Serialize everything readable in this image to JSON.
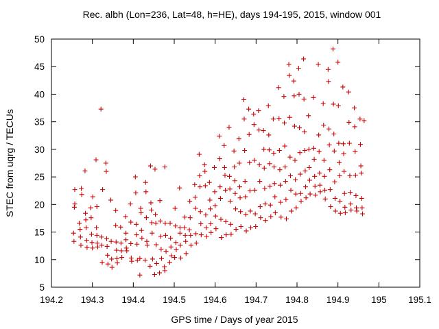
{
  "chart_data": {
    "type": "scatter",
    "title": "Rec. albh (Lon=236, Lat=48, h=HE), days 194-195, 2015, window 001",
    "xlabel": "GPS time / Days of year 2015",
    "ylabel": "STEC from uqrg / TECUs",
    "xlim": [
      194.2,
      195.1
    ],
    "ylim": [
      5,
      50
    ],
    "xticks": [
      "194.2",
      "194.3",
      "194.4",
      "194.5",
      "194.6",
      "194.7",
      "194.8",
      "194.9",
      "195",
      "195.1"
    ],
    "yticks": [
      "5",
      "10",
      "15",
      "20",
      "25",
      "30",
      "35",
      "40",
      "45",
      "50"
    ],
    "grid": false,
    "marker": "+",
    "colors": {
      "points": "#cc0000",
      "axes": "#000000"
    },
    "points": [
      [
        194.254,
        14.8
      ],
      [
        194.255,
        13.3
      ],
      [
        194.256,
        19.5
      ],
      [
        194.257,
        22.7
      ],
      [
        194.257,
        20.1
      ],
      [
        194.268,
        16.6
      ],
      [
        194.27,
        15.5
      ],
      [
        194.271,
        14.1
      ],
      [
        194.272,
        12.6
      ],
      [
        194.273,
        22.9
      ],
      [
        194.274,
        21.8
      ],
      [
        194.283,
        18.4
      ],
      [
        194.284,
        17.2
      ],
      [
        194.285,
        15.8
      ],
      [
        194.286,
        13.5
      ],
      [
        194.287,
        12.2
      ],
      [
        194.282,
        26.1
      ],
      [
        194.297,
        17.6
      ],
      [
        194.298,
        14.6
      ],
      [
        194.299,
        13.1
      ],
      [
        194.3,
        12.1
      ],
      [
        194.301,
        21.4
      ],
      [
        194.296,
        19.4
      ],
      [
        194.31,
        15.8
      ],
      [
        194.311,
        14.4
      ],
      [
        194.312,
        13.0
      ],
      [
        194.313,
        12.3
      ],
      [
        194.309,
        28.1
      ],
      [
        194.311,
        19.6
      ],
      [
        194.322,
        14.1
      ],
      [
        194.323,
        12.6
      ],
      [
        194.324,
        9.5
      ],
      [
        194.325,
        22.7
      ],
      [
        194.321,
        37.3
      ],
      [
        194.335,
        13.8
      ],
      [
        194.336,
        12.4
      ],
      [
        194.337,
        10.8
      ],
      [
        194.338,
        9.2
      ],
      [
        194.333,
        27.5
      ],
      [
        194.334,
        26.0
      ],
      [
        194.346,
        13.3
      ],
      [
        194.347,
        10.1
      ],
      [
        194.348,
        8.6
      ],
      [
        194.345,
        20.8
      ],
      [
        194.358,
        13.2
      ],
      [
        194.359,
        11.7
      ],
      [
        194.36,
        10.2
      ],
      [
        194.361,
        9.4
      ],
      [
        194.357,
        18.9
      ],
      [
        194.357,
        16.2
      ],
      [
        194.37,
        13.0
      ],
      [
        194.371,
        11.6
      ],
      [
        194.372,
        10.4
      ],
      [
        194.369,
        15.9
      ],
      [
        194.382,
        13.6
      ],
      [
        194.383,
        12.1
      ],
      [
        194.384,
        11.6
      ],
      [
        194.381,
        17.8
      ],
      [
        194.382,
        14.8
      ],
      [
        194.394,
        12.9
      ],
      [
        194.395,
        10.3
      ],
      [
        194.396,
        9.7
      ],
      [
        194.393,
        20.1
      ],
      [
        194.394,
        16.8
      ],
      [
        194.405,
        25.0
      ],
      [
        194.406,
        22.1
      ],
      [
        194.407,
        16.4
      ],
      [
        194.408,
        14.5
      ],
      [
        194.409,
        12.8
      ],
      [
        194.41,
        9.9
      ],
      [
        194.418,
        19.3
      ],
      [
        194.419,
        18.5
      ],
      [
        194.42,
        15.3
      ],
      [
        194.421,
        13.9
      ],
      [
        194.416,
        10.2
      ],
      [
        194.416,
        7.2
      ],
      [
        194.43,
        24.0
      ],
      [
        194.431,
        22.3
      ],
      [
        194.432,
        17.6
      ],
      [
        194.433,
        13.3
      ],
      [
        194.434,
        12.6
      ],
      [
        194.429,
        9.9
      ],
      [
        194.442,
        27.0
      ],
      [
        194.443,
        20.3
      ],
      [
        194.444,
        19.0
      ],
      [
        194.445,
        16.7
      ],
      [
        194.446,
        14.8
      ],
      [
        194.447,
        10.1
      ],
      [
        194.441,
        8.8
      ],
      [
        194.453,
        26.4
      ],
      [
        194.454,
        18.2
      ],
      [
        194.455,
        16.6
      ],
      [
        194.456,
        12.7
      ],
      [
        194.457,
        9.3
      ],
      [
        194.452,
        7.3
      ],
      [
        194.465,
        20.7
      ],
      [
        194.466,
        17.0
      ],
      [
        194.467,
        14.2
      ],
      [
        194.468,
        11.9
      ],
      [
        194.469,
        10.2
      ],
      [
        194.464,
        7.6
      ],
      [
        194.477,
        26.8
      ],
      [
        194.478,
        16.6
      ],
      [
        194.479,
        14.4
      ],
      [
        194.48,
        11.5
      ],
      [
        194.476,
        8.7
      ],
      [
        194.477,
        8.0
      ],
      [
        194.49,
        16.6
      ],
      [
        194.491,
        13.9
      ],
      [
        194.492,
        12.3
      ],
      [
        194.493,
        10.7
      ],
      [
        194.489,
        9.5
      ],
      [
        194.502,
        19.3
      ],
      [
        194.503,
        16.1
      ],
      [
        194.504,
        13.1
      ],
      [
        194.505,
        11.8
      ],
      [
        194.501,
        10.4
      ],
      [
        194.514,
        14.8
      ],
      [
        194.515,
        12.6
      ],
      [
        194.516,
        10.3
      ],
      [
        194.513,
        23.0
      ],
      [
        194.514,
        15.8
      ],
      [
        194.526,
        17.7
      ],
      [
        194.527,
        14.4
      ],
      [
        194.528,
        13.3
      ],
      [
        194.529,
        11.1
      ],
      [
        194.525,
        15.8
      ],
      [
        194.538,
        20.6
      ],
      [
        194.539,
        17.6
      ],
      [
        194.54,
        14.4
      ],
      [
        194.541,
        12.6
      ],
      [
        194.537,
        15.4
      ],
      [
        194.55,
        23.6
      ],
      [
        194.551,
        21.3
      ],
      [
        194.552,
        19.3
      ],
      [
        194.553,
        14.7
      ],
      [
        194.554,
        13.0
      ],
      [
        194.562,
        25.2
      ],
      [
        194.563,
        23.2
      ],
      [
        194.564,
        18.7
      ],
      [
        194.565,
        16.5
      ],
      [
        194.566,
        14.5
      ],
      [
        194.561,
        29.1
      ],
      [
        194.574,
        27.2
      ],
      [
        194.575,
        26.0
      ],
      [
        194.576,
        23.4
      ],
      [
        194.577,
        18.1
      ],
      [
        194.578,
        15.8
      ],
      [
        194.579,
        14.2
      ],
      [
        194.586,
        24.0
      ],
      [
        194.587,
        20.8
      ],
      [
        194.588,
        19.2
      ],
      [
        194.589,
        16.5
      ],
      [
        194.59,
        14.9
      ],
      [
        194.598,
        26.7
      ],
      [
        194.599,
        22.3
      ],
      [
        194.6,
        19.8
      ],
      [
        194.601,
        17.9
      ],
      [
        194.602,
        15.6
      ],
      [
        194.61,
        32.4
      ],
      [
        194.611,
        28.3
      ],
      [
        194.612,
        23.2
      ],
      [
        194.613,
        21.1
      ],
      [
        194.614,
        17.3
      ],
      [
        194.615,
        14.0
      ],
      [
        194.622,
        30.7
      ],
      [
        194.623,
        26.7
      ],
      [
        194.624,
        25.3
      ],
      [
        194.625,
        22.6
      ],
      [
        194.626,
        16.9
      ],
      [
        194.627,
        14.5
      ],
      [
        194.634,
        34.0
      ],
      [
        194.635,
        25.1
      ],
      [
        194.636,
        22.8
      ],
      [
        194.637,
        20.6
      ],
      [
        194.638,
        16.4
      ],
      [
        194.639,
        14.6
      ],
      [
        194.646,
        29.7
      ],
      [
        194.647,
        26.8
      ],
      [
        194.648,
        24.3
      ],
      [
        194.649,
        22.0
      ],
      [
        194.65,
        19.2
      ],
      [
        194.651,
        15.5
      ],
      [
        194.658,
        31.9
      ],
      [
        194.659,
        27.5
      ],
      [
        194.66,
        23.2
      ],
      [
        194.661,
        21.2
      ],
      [
        194.662,
        18.7
      ],
      [
        194.663,
        16.0
      ],
      [
        194.67,
        39.0
      ],
      [
        194.671,
        35.5
      ],
      [
        194.672,
        29.8
      ],
      [
        194.673,
        24.2
      ],
      [
        194.674,
        21.4
      ],
      [
        194.675,
        18.2
      ],
      [
        194.676,
        15.2
      ],
      [
        194.682,
        37.3
      ],
      [
        194.683,
        32.7
      ],
      [
        194.684,
        27.6
      ],
      [
        194.685,
        22.5
      ],
      [
        194.686,
        18.8
      ],
      [
        194.687,
        15.8
      ],
      [
        194.694,
        36.4
      ],
      [
        194.695,
        34.5
      ],
      [
        194.696,
        28.0
      ],
      [
        194.697,
        22.6
      ],
      [
        194.698,
        18.3
      ],
      [
        194.699,
        16.0
      ],
      [
        194.706,
        37.0
      ],
      [
        194.707,
        33.5
      ],
      [
        194.708,
        27.2
      ],
      [
        194.709,
        24.2
      ],
      [
        194.71,
        19.6
      ],
      [
        194.711,
        17.6
      ],
      [
        194.718,
        33.4
      ],
      [
        194.719,
        30.0
      ],
      [
        194.72,
        26.6
      ],
      [
        194.721,
        22.9
      ],
      [
        194.722,
        20.1
      ],
      [
        194.723,
        17.1
      ],
      [
        194.73,
        37.9
      ],
      [
        194.731,
        32.6
      ],
      [
        194.732,
        29.9
      ],
      [
        194.733,
        27.4
      ],
      [
        194.734,
        23.3
      ],
      [
        194.735,
        19.9
      ],
      [
        194.736,
        17.8
      ],
      [
        194.742,
        35.5
      ],
      [
        194.743,
        29.3
      ],
      [
        194.744,
        26.8
      ],
      [
        194.745,
        23.8
      ],
      [
        194.746,
        21.4
      ],
      [
        194.747,
        18.5
      ],
      [
        194.755,
        41.2
      ],
      [
        194.756,
        35.6
      ],
      [
        194.757,
        29.8
      ],
      [
        194.758,
        26.3
      ],
      [
        194.759,
        23.5
      ],
      [
        194.76,
        20.4
      ],
      [
        194.761,
        17.7
      ],
      [
        194.768,
        39.6
      ],
      [
        194.769,
        34.8
      ],
      [
        194.77,
        30.6
      ],
      [
        194.771,
        26.8
      ],
      [
        194.772,
        24.2
      ],
      [
        194.773,
        20.9
      ],
      [
        194.774,
        17.4
      ],
      [
        194.78,
        45.4
      ],
      [
        194.781,
        43.4
      ],
      [
        194.782,
        35.8
      ],
      [
        194.783,
        28.6
      ],
      [
        194.784,
        25.2
      ],
      [
        194.785,
        22.6
      ],
      [
        194.786,
        18.8
      ],
      [
        194.792,
        42.4
      ],
      [
        194.793,
        39.7
      ],
      [
        194.794,
        34.2
      ],
      [
        194.795,
        28.0
      ],
      [
        194.796,
        24.5
      ],
      [
        194.797,
        21.9
      ],
      [
        194.798,
        19.4
      ],
      [
        194.804,
        44.7
      ],
      [
        194.805,
        40.0
      ],
      [
        194.806,
        33.9
      ],
      [
        194.807,
        29.4
      ],
      [
        194.808,
        25.5
      ],
      [
        194.809,
        22.0
      ],
      [
        194.81,
        20.6
      ],
      [
        194.816,
        46.4
      ],
      [
        194.817,
        39.1
      ],
      [
        194.818,
        33.2
      ],
      [
        194.819,
        29.8
      ],
      [
        194.82,
        26.1
      ],
      [
        194.821,
        23.2
      ],
      [
        194.822,
        21.2
      ],
      [
        194.828,
        36.1
      ],
      [
        194.829,
        30.0
      ],
      [
        194.83,
        26.7
      ],
      [
        194.831,
        24.4
      ],
      [
        194.832,
        21.9
      ],
      [
        194.84,
        39.4
      ],
      [
        194.841,
        30.2
      ],
      [
        194.842,
        28.2
      ],
      [
        194.843,
        25.1
      ],
      [
        194.844,
        23.3
      ],
      [
        194.845,
        21.7
      ],
      [
        194.852,
        45.4
      ],
      [
        194.853,
        32.6
      ],
      [
        194.854,
        29.6
      ],
      [
        194.855,
        25.7
      ],
      [
        194.856,
        23.5
      ],
      [
        194.857,
        22.3
      ],
      [
        194.864,
        38.3
      ],
      [
        194.865,
        34.4
      ],
      [
        194.866,
        28.0
      ],
      [
        194.867,
        25.1
      ],
      [
        194.868,
        22.6
      ],
      [
        194.869,
        21.0
      ],
      [
        194.876,
        44.5
      ],
      [
        194.877,
        42.3
      ],
      [
        194.878,
        33.7
      ],
      [
        194.879,
        30.8
      ],
      [
        194.88,
        26.3
      ],
      [
        194.881,
        22.7
      ],
      [
        194.882,
        19.6
      ],
      [
        194.888,
        48.2
      ],
      [
        194.889,
        38.2
      ],
      [
        194.89,
        32.8
      ],
      [
        194.891,
        29.7
      ],
      [
        194.892,
        24.1
      ],
      [
        194.893,
        21.1
      ],
      [
        194.894,
        18.8
      ],
      [
        194.9,
        45.8
      ],
      [
        194.901,
        37.9
      ],
      [
        194.902,
        31.1
      ],
      [
        194.903,
        27.6
      ],
      [
        194.904,
        25.2
      ],
      [
        194.905,
        20.6
      ],
      [
        194.906,
        18.4
      ],
      [
        194.912,
        41.3
      ],
      [
        194.913,
        31.0
      ],
      [
        194.914,
        29.2
      ],
      [
        194.915,
        26.0
      ],
      [
        194.916,
        22.0
      ],
      [
        194.917,
        19.5
      ],
      [
        194.918,
        18.5
      ],
      [
        194.926,
        40.4
      ],
      [
        194.927,
        34.9
      ],
      [
        194.928,
        31.1
      ],
      [
        194.929,
        25.2
      ],
      [
        194.93,
        22.2
      ],
      [
        194.931,
        20.1
      ],
      [
        194.932,
        19.0
      ],
      [
        194.94,
        37.5
      ],
      [
        194.941,
        34.1
      ],
      [
        194.942,
        29.6
      ],
      [
        194.943,
        25.3
      ],
      [
        194.944,
        21.6
      ],
      [
        194.945,
        19.4
      ],
      [
        194.946,
        18.8
      ],
      [
        194.954,
        35.5
      ],
      [
        194.955,
        30.9
      ],
      [
        194.956,
        27.0
      ],
      [
        194.957,
        25.7
      ],
      [
        194.958,
        21.1
      ],
      [
        194.959,
        19.4
      ],
      [
        194.96,
        18.3
      ],
      [
        194.964,
        35.2
      ]
    ]
  }
}
